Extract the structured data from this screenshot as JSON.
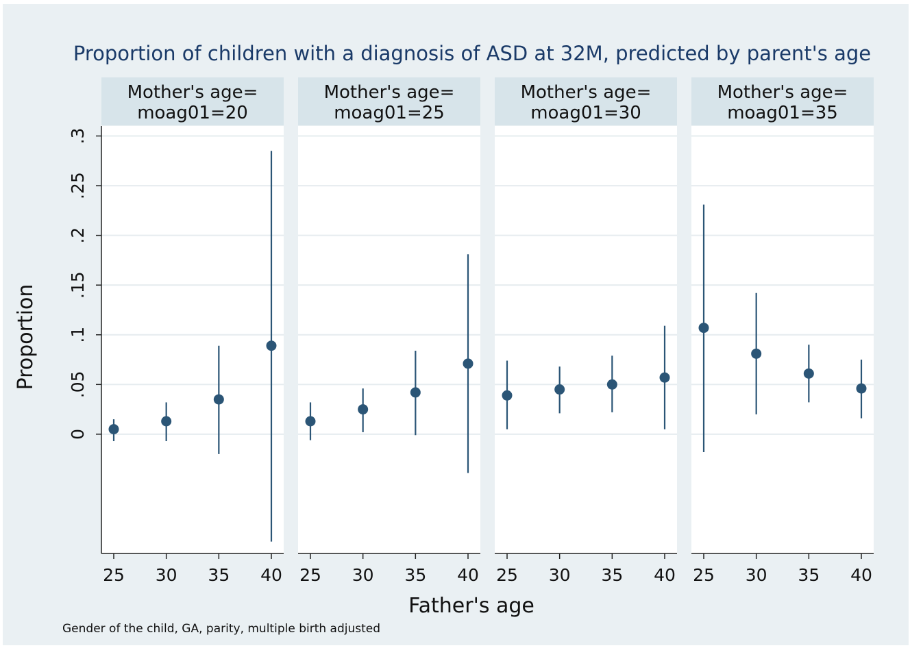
{
  "chart_data": {
    "type": "scatter",
    "title": "Proportion of children with a diagnosis of ASD at 32M, predicted by parent's age",
    "xlabel": "Father's age",
    "ylabel": "Proportion",
    "note": "Gender of the child, GA, parity, multiple birth adjusted",
    "x_ticks": [
      "25",
      "30",
      "35",
      "40"
    ],
    "y_ticks": [
      "0",
      ".05",
      ".1",
      ".15",
      ".2",
      ".25",
      ".3"
    ],
    "y_tick_values": [
      0,
      0.05,
      0.1,
      0.15,
      0.2,
      0.25,
      0.3
    ],
    "ylim": [
      -0.12,
      0.31
    ],
    "grid": true,
    "marker_color": "#2b5576",
    "panels": [
      {
        "label_line1": "Mother's age=",
        "label_line2": "moag01=20",
        "x": [
          25,
          30,
          35,
          40
        ],
        "estimate": [
          0.005,
          0.013,
          0.035,
          0.089
        ],
        "lower": [
          -0.007,
          -0.007,
          -0.02,
          -0.108
        ],
        "upper": [
          0.015,
          0.032,
          0.089,
          0.285
        ]
      },
      {
        "label_line1": "Mother's age=",
        "label_line2": "moag01=25",
        "x": [
          25,
          30,
          35,
          40
        ],
        "estimate": [
          0.013,
          0.025,
          0.042,
          0.071
        ],
        "lower": [
          -0.006,
          0.002,
          -0.001,
          -0.039
        ],
        "upper": [
          0.032,
          0.046,
          0.084,
          0.181
        ]
      },
      {
        "label_line1": "Mother's age=",
        "label_line2": "moag01=30",
        "x": [
          25,
          30,
          35,
          40
        ],
        "estimate": [
          0.039,
          0.045,
          0.05,
          0.057
        ],
        "lower": [
          0.005,
          0.021,
          0.022,
          0.005
        ],
        "upper": [
          0.074,
          0.068,
          0.079,
          0.109
        ]
      },
      {
        "label_line1": "Mother's age=",
        "label_line2": "moag01=35",
        "x": [
          25,
          30,
          35,
          40
        ],
        "estimate": [
          0.107,
          0.081,
          0.061,
          0.046
        ],
        "lower": [
          -0.018,
          0.02,
          0.032,
          0.016
        ],
        "upper": [
          0.231,
          0.142,
          0.09,
          0.075
        ]
      }
    ]
  }
}
